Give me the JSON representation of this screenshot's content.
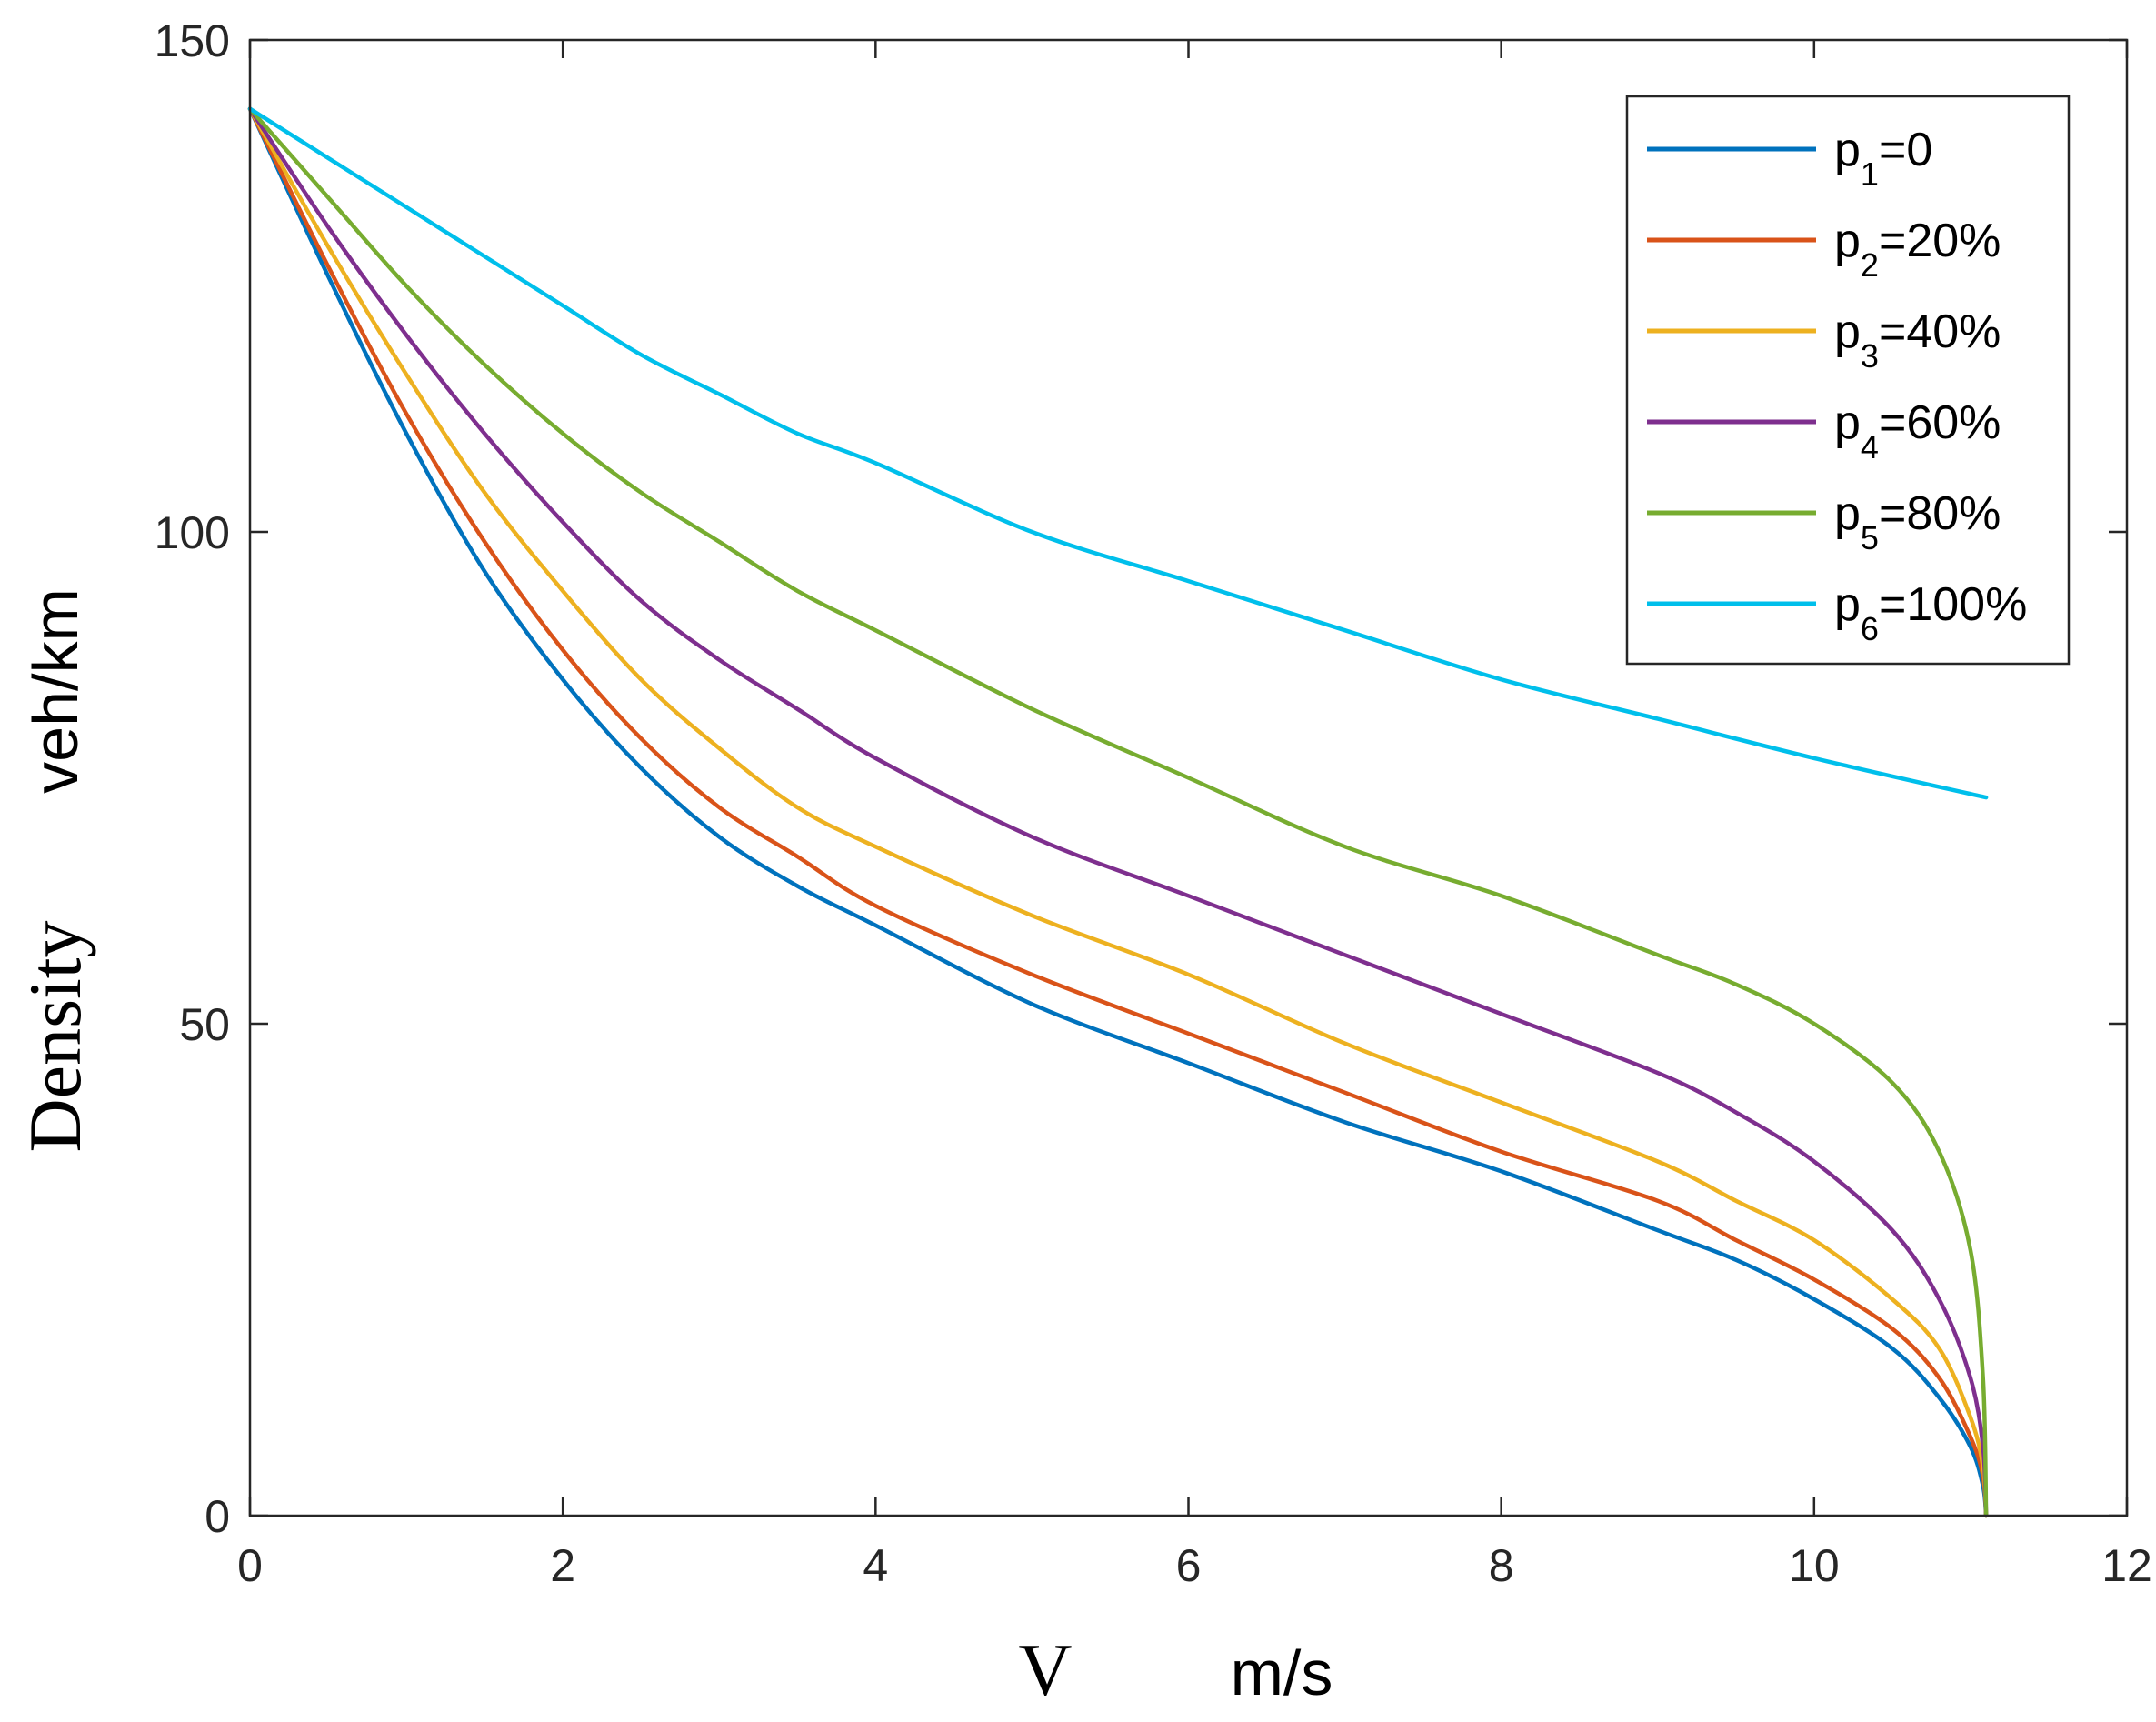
{
  "chart_data": {
    "type": "line",
    "title": "",
    "xlabel": "V",
    "xlabel_unit": "m/s",
    "ylabel": "Density",
    "ylabel_unit": "veh/km",
    "xlim": [
      0,
      12
    ],
    "ylim": [
      0,
      150
    ],
    "xticks": [
      0,
      2,
      4,
      6,
      8,
      10,
      12
    ],
    "yticks": [
      0,
      50,
      100,
      150
    ],
    "grid": false,
    "legend_position": "top-right",
    "series": [
      {
        "name": "p1=0",
        "base": "p",
        "sub": "1",
        "suffix": "=0",
        "color": "#0072BD",
        "x": [
          0,
          0.5,
          1,
          1.5,
          2,
          2.5,
          3,
          3.5,
          4,
          5,
          6,
          7,
          8,
          9,
          9.5,
          10,
          10.5,
          10.8,
          11,
          11.08,
          11.1
        ],
        "y": [
          143,
          126,
          110,
          96,
          85,
          76,
          69,
          64,
          60,
          52,
          46,
          40,
          35,
          29,
          26,
          22,
          17,
          12,
          7,
          3,
          0
        ]
      },
      {
        "name": "p2=20%",
        "base": "p",
        "sub": "2",
        "suffix": "=20%",
        "color": "#D95319",
        "x": [
          0,
          0.5,
          1,
          1.5,
          2,
          2.5,
          3,
          3.5,
          4,
          5,
          6,
          7,
          8,
          9,
          9.5,
          10,
          10.5,
          10.8,
          11,
          11.08,
          11.1
        ],
        "y": [
          143,
          127,
          112,
          99,
          88,
          79,
          72,
          67,
          62,
          55,
          49,
          43,
          37,
          32,
          28,
          24,
          19,
          14,
          8,
          4,
          0
        ]
      },
      {
        "name": "p3=40%",
        "base": "p",
        "sub": "3",
        "suffix": "=40%",
        "color": "#EDB120",
        "x": [
          0,
          0.5,
          1,
          1.5,
          2,
          2.5,
          3,
          3.5,
          4,
          5,
          6,
          7,
          8,
          9,
          9.5,
          10,
          10.5,
          10.8,
          11,
          11.08,
          11.1
        ],
        "y": [
          143,
          129,
          116,
          104,
          94,
          85,
          78,
          72,
          68,
          61,
          55,
          48,
          42,
          36,
          32,
          28,
          22,
          17,
          10,
          5,
          0
        ]
      },
      {
        "name": "p4=60%",
        "base": "p",
        "sub": "4",
        "suffix": "=60%",
        "color": "#7E2F8E",
        "x": [
          0,
          0.5,
          1,
          1.5,
          2,
          2.5,
          3,
          3.5,
          4,
          5,
          6,
          7,
          8,
          9,
          9.5,
          10,
          10.5,
          10.8,
          11,
          11.08,
          11.1
        ],
        "y": [
          143,
          131,
          120,
          110,
          101,
          93,
          87,
          82,
          77,
          69,
          63,
          57,
          51,
          45,
          41,
          36,
          29,
          22,
          14,
          7,
          0
        ]
      },
      {
        "name": "p5=80%",
        "base": "p",
        "sub": "5",
        "suffix": "=80%",
        "color": "#77AC30",
        "x": [
          0,
          0.5,
          1,
          1.5,
          2,
          2.5,
          3,
          3.5,
          4,
          5,
          6,
          7,
          8,
          9,
          9.5,
          10,
          10.5,
          10.8,
          11,
          11.08,
          11.1
        ],
        "y": [
          143,
          134,
          125,
          117,
          110,
          104,
          99,
          94,
          90,
          82,
          75,
          68,
          63,
          57,
          54,
          50,
          44,
          37,
          27,
          14,
          0
        ]
      },
      {
        "name": "p6=100%",
        "base": "p",
        "sub": "6",
        "suffix": "=100%",
        "color": "#00BFEB",
        "x": [
          0,
          0.5,
          1,
          1.5,
          2,
          2.5,
          3,
          3.5,
          4,
          5,
          6,
          7,
          8,
          9,
          10,
          11.1
        ],
        "y": [
          143,
          138,
          133,
          128,
          123,
          118,
          114,
          110,
          107,
          100,
          95,
          90,
          85,
          81,
          77,
          73
        ]
      }
    ]
  }
}
